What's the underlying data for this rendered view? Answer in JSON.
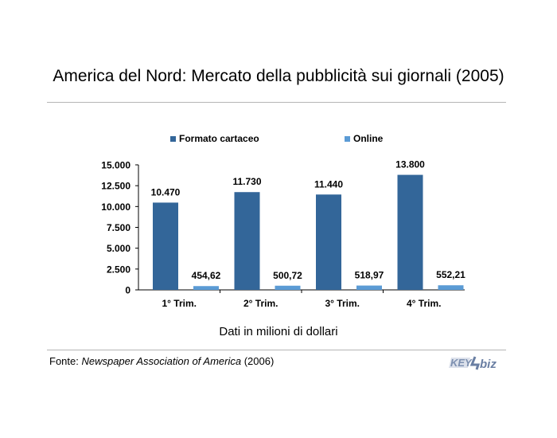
{
  "title": "America del Nord: Mercato della pubblicità sui giornali (2005)",
  "note": "Dati in milioni di dollari",
  "source": {
    "prefix": "Fonte: ",
    "name": "Newspaper Association of America",
    "suffix": " (2006)"
  },
  "logo": {
    "text_key": "KEY",
    "text_biz": "biz",
    "colors": {
      "key": "#8a9bb8",
      "biz": "#6a7fa3"
    }
  },
  "chart_data": {
    "type": "bar",
    "categories": [
      "1° Trim.",
      "2° Trim.",
      "3° Trim.",
      "4° Trim."
    ],
    "series": [
      {
        "name": "Formato cartaceo",
        "color": "#336699",
        "values": [
          10470,
          11730,
          11440,
          13800
        ],
        "labels": [
          "10.470",
          "11.730",
          "11.440",
          "13.800"
        ]
      },
      {
        "name": "Online",
        "color": "#5b9bd5",
        "values": [
          454.62,
          500.72,
          518.97,
          552.21
        ],
        "labels": [
          "454,62",
          "500,72",
          "518,97",
          "552,21"
        ]
      }
    ],
    "ylim": [
      0,
      15000
    ],
    "yticks": [
      0,
      2500,
      5000,
      7500,
      10000,
      12500,
      15000
    ],
    "ytick_labels": [
      "0",
      "2.500",
      "5.000",
      "7.500",
      "10.000",
      "12.500",
      "15.000"
    ],
    "legend_position": "top",
    "grid": false
  }
}
